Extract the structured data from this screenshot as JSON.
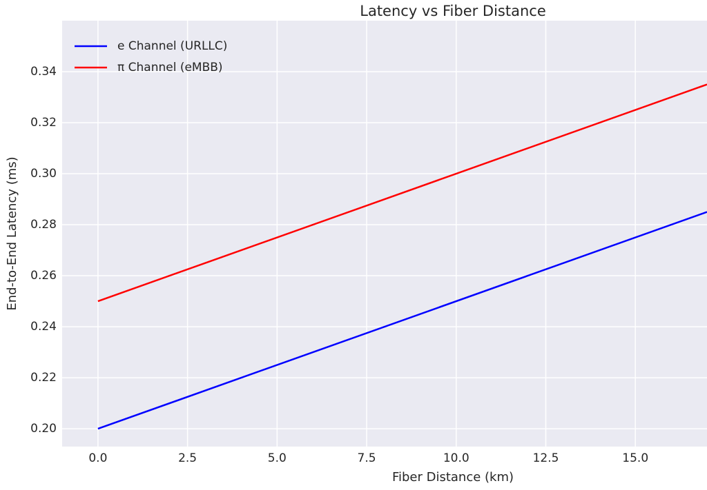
{
  "chart_data": {
    "type": "line",
    "title": "Latency vs Fiber Distance",
    "x_label": "Fiber Distance (km)",
    "y_label": "End-to-End Latency (ms)",
    "x": [
      0,
      17
    ],
    "series": [
      {
        "name": "e Channel (URLLC)",
        "color": "#0000ff",
        "values": [
          0.2,
          0.285
        ]
      },
      {
        "name": "π Channel (eMBB)",
        "color": "#ff0000",
        "values": [
          0.25,
          0.335
        ]
      }
    ],
    "xlim": [
      -1,
      17
    ],
    "ylim": [
      0.193,
      0.36
    ],
    "xticks": [
      {
        "value": 0,
        "label": "0.0"
      },
      {
        "value": 2.5,
        "label": "2.5"
      },
      {
        "value": 5,
        "label": "5.0"
      },
      {
        "value": 7.5,
        "label": "7.5"
      },
      {
        "value": 10,
        "label": "10.0"
      },
      {
        "value": 12.5,
        "label": "12.5"
      },
      {
        "value": 15,
        "label": "15.0"
      }
    ],
    "yticks": [
      {
        "value": 0.2,
        "label": "0.20"
      },
      {
        "value": 0.22,
        "label": "0.22"
      },
      {
        "value": 0.24,
        "label": "0.24"
      },
      {
        "value": 0.26,
        "label": "0.26"
      },
      {
        "value": 0.28,
        "label": "0.28"
      },
      {
        "value": 0.3,
        "label": "0.30"
      },
      {
        "value": 0.32,
        "label": "0.32"
      },
      {
        "value": 0.34,
        "label": "0.34"
      }
    ],
    "grid": true,
    "legend": "upper left"
  }
}
